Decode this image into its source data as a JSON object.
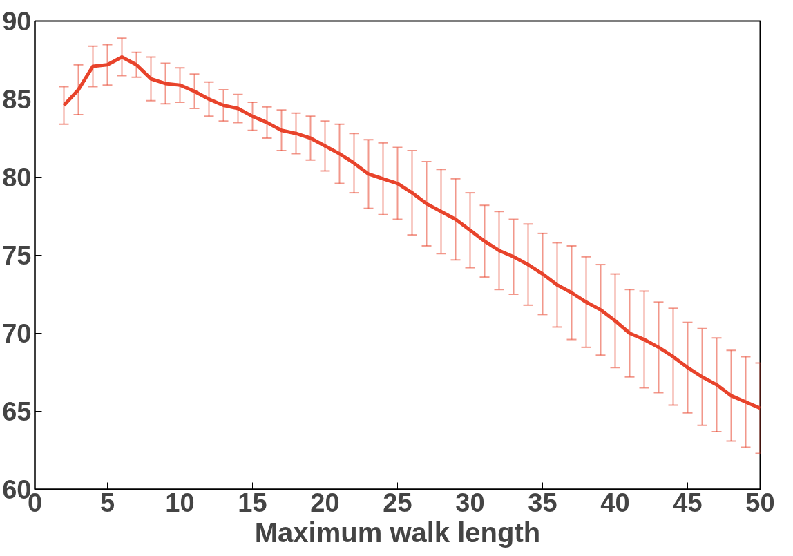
{
  "chart_data": {
    "type": "line",
    "xlabel": "Maximum walk length",
    "x": [
      2,
      3,
      4,
      5,
      6,
      7,
      8,
      9,
      10,
      11,
      12,
      13,
      14,
      15,
      16,
      17,
      18,
      19,
      20,
      21,
      22,
      23,
      24,
      25,
      26,
      27,
      28,
      29,
      30,
      31,
      32,
      33,
      34,
      35,
      36,
      37,
      38,
      39,
      40,
      41,
      42,
      43,
      44,
      45,
      46,
      47,
      48,
      49,
      50
    ],
    "series": [
      {
        "color": "#e8432b",
        "values": [
          84.6,
          85.6,
          87.1,
          87.2,
          87.7,
          87.2,
          86.3,
          86.0,
          85.9,
          85.5,
          85.0,
          84.6,
          84.4,
          83.9,
          83.5,
          83.0,
          82.8,
          82.5,
          82.0,
          81.5,
          80.9,
          80.2,
          79.9,
          79.6,
          79.0,
          78.3,
          77.8,
          77.3,
          76.6,
          75.9,
          75.3,
          74.9,
          74.4,
          73.8,
          73.1,
          72.6,
          72.0,
          71.5,
          70.8,
          70.0,
          69.6,
          69.1,
          68.5,
          67.8,
          67.2,
          66.7,
          66.0,
          65.6,
          65.2
        ],
        "errors": [
          1.2,
          1.6,
          1.3,
          1.3,
          1.2,
          0.8,
          1.4,
          1.3,
          1.1,
          1.1,
          1.1,
          1.0,
          0.9,
          0.9,
          1.0,
          1.3,
          1.3,
          1.4,
          1.6,
          1.9,
          1.9,
          2.2,
          2.3,
          2.3,
          2.7,
          2.7,
          2.7,
          2.6,
          2.4,
          2.3,
          2.5,
          2.4,
          2.6,
          2.6,
          2.7,
          3.0,
          2.9,
          2.9,
          3.0,
          2.8,
          3.1,
          2.9,
          3.1,
          2.9,
          3.1,
          3.0,
          2.9,
          2.9,
          2.9
        ]
      }
    ],
    "xlim": [
      0,
      50
    ],
    "ylim": [
      60,
      90
    ],
    "xticks": [
      0,
      5,
      10,
      15,
      20,
      25,
      30,
      35,
      40,
      45,
      50
    ],
    "yticks": [
      60,
      65,
      70,
      75,
      80,
      85,
      90
    ],
    "grid": false,
    "marker": "none",
    "line_style": "solid"
  }
}
